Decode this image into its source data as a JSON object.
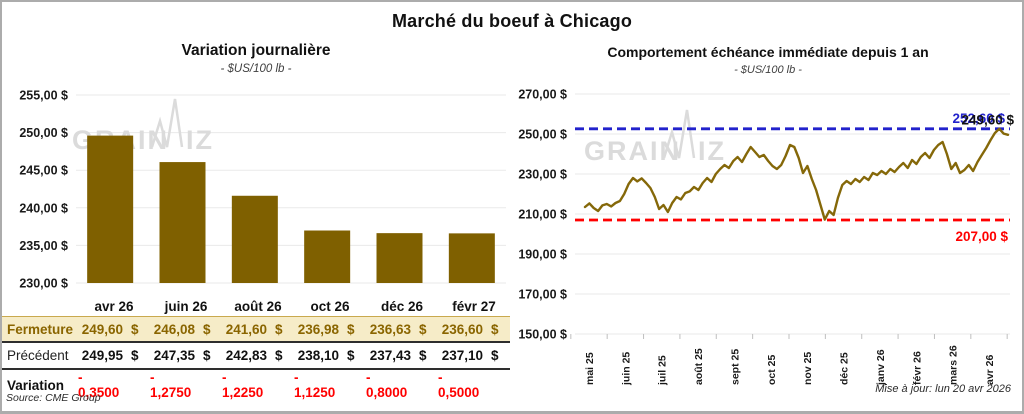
{
  "page": {
    "title": "Marché du boeuf à Chicago",
    "source_note": "Source: CME Group",
    "update_note": "Mise à jour: lun 20 avr 2026",
    "watermark_part1": "GRAIN",
    "watermark_part2": "IZ"
  },
  "colors": {
    "bar": "#7F6000",
    "line": "#856809",
    "high_line": "#2222CC",
    "low_line": "#FF0000",
    "grid": "#EAEAEA",
    "tick": "#BFBFBF",
    "axis_text": "#1a1a1a",
    "watermark": "#DBDBDB",
    "fermeture_bg": "#F6ECC8",
    "fermeture_text": "#8A6500",
    "variation_value": "#FF0000",
    "end_label_text": "#111111"
  },
  "chart_data": [
    {
      "type": "bar",
      "title": "Variation journalière",
      "subtitle": "- $US/100 lb -",
      "categories": [
        "avr 26",
        "juin 26",
        "août 26",
        "oct 26",
        "déc 26",
        "févr 27"
      ],
      "values": [
        249.6,
        246.08,
        241.6,
        236.98,
        236.63,
        236.6
      ],
      "ylim": [
        230,
        255
      ],
      "ytick_step": 5,
      "ytick_suffix": " $",
      "grid": "horizontal",
      "legend": "none"
    },
    {
      "type": "line",
      "title": "Comportement échéance immédiate depuis 1 an",
      "subtitle": "- $US/100 lb -",
      "x_tick_labels": [
        "mai 25",
        "juin 25",
        "juil 25",
        "août 25",
        "sept 25",
        "oct 25",
        "nov 25",
        "déc 25",
        "janv 26",
        "févr 26",
        "mars 26",
        "avr 26"
      ],
      "series": [
        {
          "name": "échéance immédiate",
          "values": [
            213.5,
            215.3,
            213.0,
            211.5,
            214.3,
            215.0,
            213.8,
            215.5,
            216.5,
            220.0,
            225.0,
            228.0,
            226.3,
            227.8,
            225.5,
            223.0,
            218.5,
            212.5,
            214.5,
            211.0,
            215.5,
            218.5,
            217.3,
            220.5,
            221.3,
            223.5,
            222.0,
            225.5,
            228.0,
            226.0,
            230.0,
            232.5,
            234.5,
            233.0,
            236.5,
            238.5,
            236.0,
            240.0,
            243.5,
            241.0,
            238.5,
            239.5,
            236.5,
            234.0,
            232.5,
            234.5,
            239.0,
            244.5,
            243.5,
            238.0,
            230.5,
            234.0,
            227.5,
            222.0,
            214.5,
            207.2,
            211.5,
            209.5,
            218.0,
            224.5,
            226.5,
            225.0,
            227.5,
            226.0,
            228.5,
            227.0,
            230.5,
            229.5,
            231.5,
            230.0,
            232.5,
            231.0,
            233.5,
            235.5,
            233.0,
            237.0,
            235.0,
            238.5,
            240.5,
            238.0,
            242.0,
            244.5,
            246.0,
            240.0,
            232.5,
            235.5,
            230.5,
            232.0,
            234.5,
            231.5,
            236.0,
            239.5,
            243.0,
            247.0,
            250.5,
            252.6,
            250.2,
            249.6
          ]
        }
      ],
      "ylim": [
        150,
        270
      ],
      "ytick_step": 20,
      "ytick_suffix": " $",
      "grid": "horizontal",
      "legend": "none",
      "hlines": [
        {
          "value": 252.6,
          "label": "252,60 $",
          "color_key": "high_line"
        },
        {
          "value": 207.0,
          "label": "207,00 $",
          "color_key": "low_line"
        }
      ],
      "end_label": "249,60 $"
    }
  ],
  "table": {
    "columns": [
      "avr 26",
      "juin 26",
      "août 26",
      "oct 26",
      "déc 26",
      "févr 27"
    ],
    "rows": [
      {
        "label": "Fermeture",
        "style": "fermeture",
        "currency": "$",
        "values": [
          "249,60",
          "246,08",
          "241,60",
          "236,98",
          "236,63",
          "236,60"
        ]
      },
      {
        "label": "Précédent",
        "style": "precedent",
        "currency": "$",
        "values": [
          "249,95",
          "247,35",
          "242,83",
          "238,10",
          "237,43",
          "237,10"
        ]
      },
      {
        "label": "Variation",
        "style": "variation",
        "currency": "",
        "values": [
          "- 0,3500",
          "- 1,2750",
          "- 1,2250",
          "- 1,1250",
          "- 0,8000",
          "- 0,5000"
        ]
      }
    ]
  }
}
